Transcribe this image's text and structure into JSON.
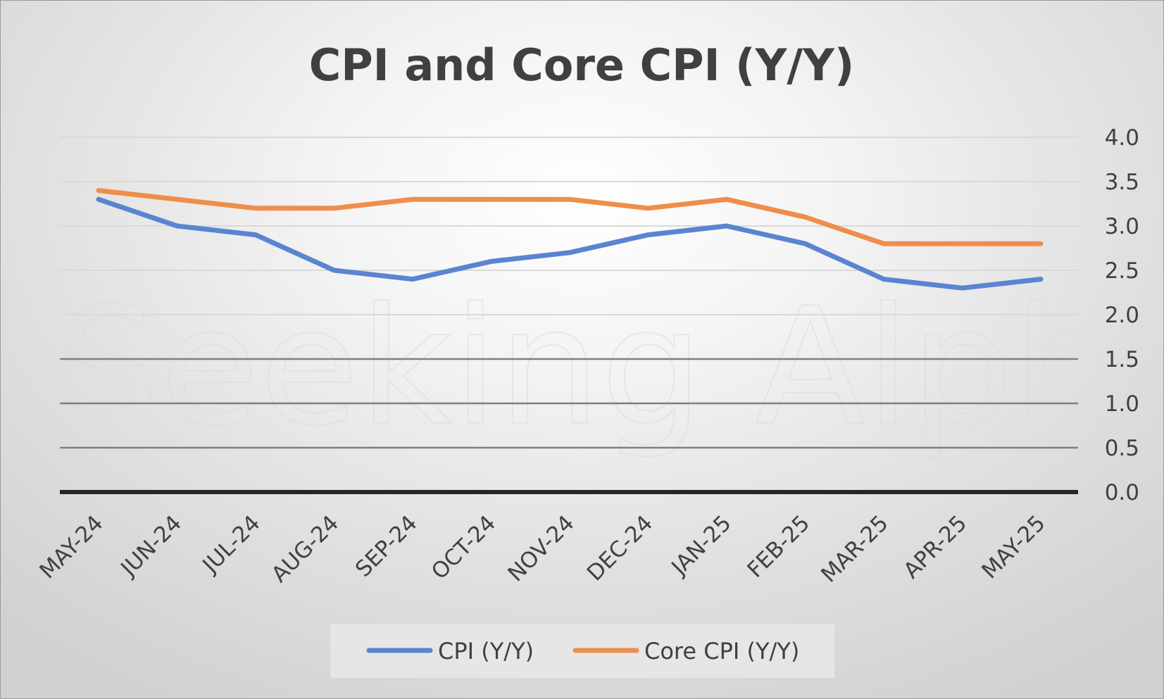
{
  "chart_data": {
    "type": "line",
    "title": "CPI and Core CPI (Y/Y)",
    "xlabel": "",
    "ylabel": "",
    "categories": [
      "MAY-24",
      "JUN-24",
      "JUL-24",
      "AUG-24",
      "SEP-24",
      "OCT-24",
      "NOV-24",
      "DEC-24",
      "JAN-25",
      "FEB-25",
      "MAR-25",
      "APR-25",
      "MAY-25"
    ],
    "series": [
      {
        "name": "CPI (Y/Y)",
        "color": "#5B84D0",
        "values": [
          3.3,
          3.0,
          2.9,
          2.5,
          2.4,
          2.6,
          2.7,
          2.9,
          3.0,
          2.8,
          2.4,
          2.3,
          2.4
        ]
      },
      {
        "name": "Core CPI (Y/Y)",
        "color": "#EE8E4A",
        "values": [
          3.4,
          3.3,
          3.2,
          3.2,
          3.3,
          3.3,
          3.3,
          3.2,
          3.3,
          3.1,
          2.8,
          2.8,
          2.8
        ]
      }
    ],
    "ylim": [
      0,
      4.0
    ],
    "yticks": [
      "0.0",
      "0.5",
      "1.0",
      "1.5",
      "2.0",
      "2.5",
      "3.0",
      "3.5",
      "4.0"
    ],
    "y_axis_side": "right",
    "x_tick_rotation": "diagonal",
    "grid": true,
    "legend_position": "bottom"
  },
  "watermark": "Seeking Alpha",
  "colors": {
    "gridline": "#d9d9d9",
    "gridline_dark": "#7f7f7f",
    "axis": "#262626",
    "text": "#404040"
  }
}
